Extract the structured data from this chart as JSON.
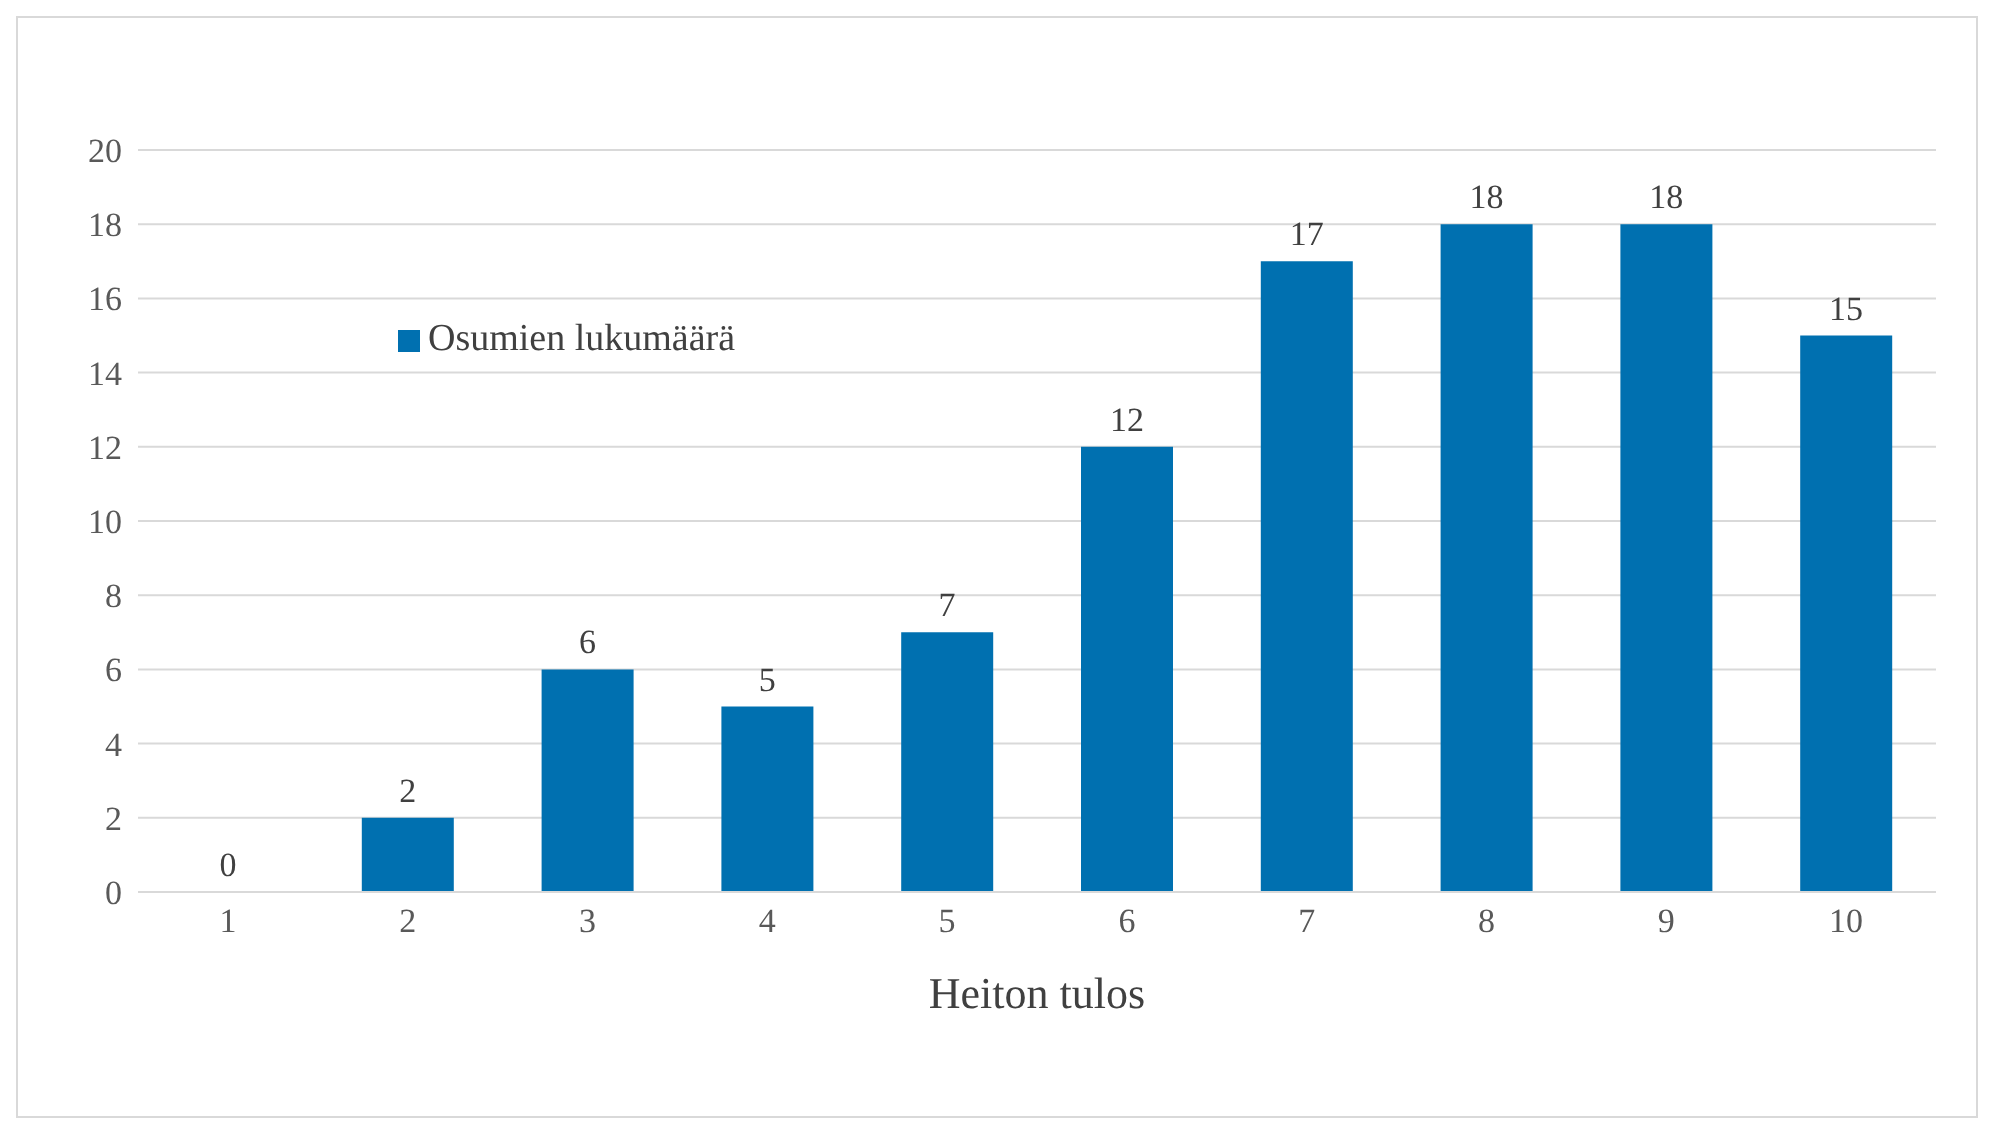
{
  "chart_data": {
    "type": "bar",
    "xlabel": "Heiton tulos",
    "categories": [
      "1",
      "2",
      "3",
      "4",
      "5",
      "6",
      "7",
      "8",
      "9",
      "10"
    ],
    "series": [
      {
        "name": "Osumien lukumäärä",
        "color": "#0070b0",
        "values": [
          0,
          2,
          6,
          5,
          7,
          12,
          17,
          18,
          18,
          15
        ]
      }
    ],
    "ylim": [
      0,
      20
    ],
    "yticks": [
      0,
      2,
      4,
      6,
      8,
      10,
      12,
      14,
      16,
      18,
      20
    ],
    "grid": "y",
    "legend": "top left",
    "data_labels": true
  }
}
